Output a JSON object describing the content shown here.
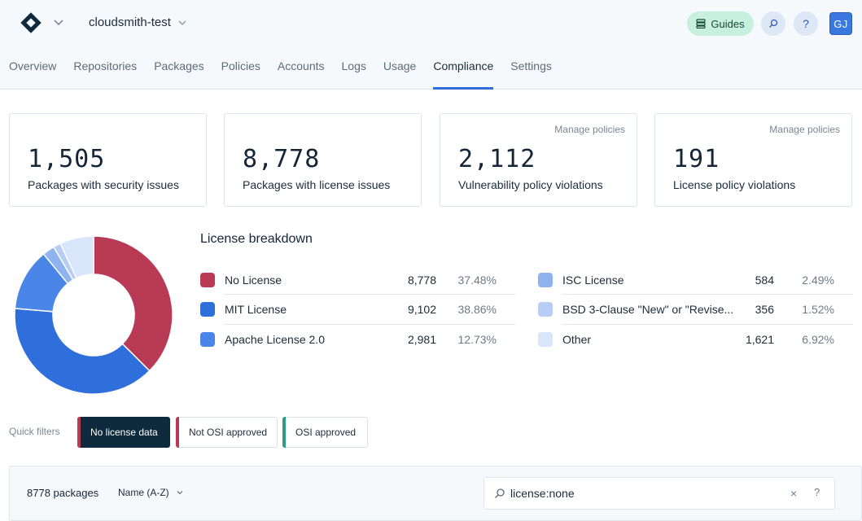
{
  "header": {
    "org_name": "cloudsmith-test",
    "guides_label": "Guides",
    "help_label": "?",
    "avatar_initials": "GJ"
  },
  "tabs": [
    {
      "label": "Overview"
    },
    {
      "label": "Repositories"
    },
    {
      "label": "Packages"
    },
    {
      "label": "Policies"
    },
    {
      "label": "Accounts"
    },
    {
      "label": "Logs"
    },
    {
      "label": "Usage"
    },
    {
      "label": "Compliance",
      "active": true
    },
    {
      "label": "Settings"
    }
  ],
  "stats": [
    {
      "value": "1,505",
      "label": "Packages with security issues",
      "link": ""
    },
    {
      "value": "8,778",
      "label": "Packages with license issues",
      "link": ""
    },
    {
      "value": "2,112",
      "label": "Vulnerability policy violations",
      "link": "Manage policies"
    },
    {
      "value": "191",
      "label": "License policy violations",
      "link": "Manage policies"
    }
  ],
  "license_breakdown": {
    "title": "License breakdown",
    "items": [
      {
        "name": "No License",
        "count": "8,778",
        "pct": "37.48%",
        "value": 37.48,
        "color": "#b83a55"
      },
      {
        "name": "MIT License",
        "count": "9,102",
        "pct": "38.86%",
        "value": 38.86,
        "color": "#2f6fdc"
      },
      {
        "name": "Apache License 2.0",
        "count": "2,981",
        "pct": "12.73%",
        "value": 12.73,
        "color": "#4a86e8"
      },
      {
        "name": "ISC License",
        "count": "584",
        "pct": "2.49%",
        "value": 2.49,
        "color": "#8fb3ef"
      },
      {
        "name": "BSD 3-Clause \"New\" or \"Revise...",
        "count": "356",
        "pct": "1.52%",
        "value": 1.52,
        "color": "#b7cdf5"
      },
      {
        "name": "Other",
        "count": "1,621",
        "pct": "6.92%",
        "value": 6.92,
        "color": "#d9e5fa"
      }
    ]
  },
  "quick_filters": {
    "label": "Quick filters",
    "items": [
      {
        "label": "No license data",
        "accent": "#b83a55",
        "active": true
      },
      {
        "label": "Not OSI approved",
        "accent": "#b83a55",
        "active": false
      },
      {
        "label": "OSI approved",
        "accent": "#2a9d82",
        "active": false
      }
    ]
  },
  "packages": {
    "count_label": "8778 packages",
    "sort_label": "Name (A-Z)",
    "search_value": "license:none",
    "clear_label": "×",
    "help_label": "?"
  }
}
